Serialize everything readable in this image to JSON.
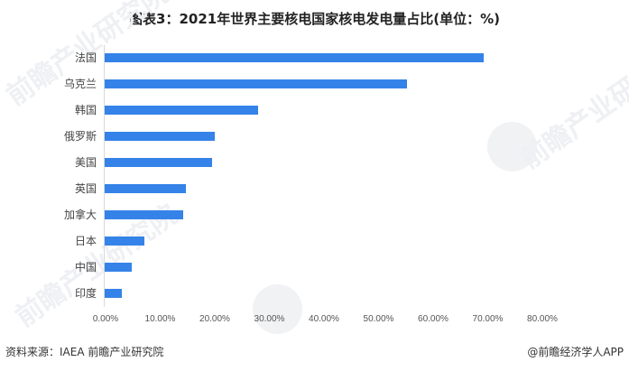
{
  "title": "图表3：2021年世界主要核电国家核电发电量占比(单位：%)",
  "chart_data": {
    "type": "bar",
    "orientation": "horizontal",
    "title": "图表3：2021年世界主要核电国家核电发电量占比(单位：%)",
    "xlabel": "",
    "ylabel": "",
    "categories": [
      "法国",
      "乌克兰",
      "韩国",
      "俄罗斯",
      "美国",
      "英国",
      "加拿大",
      "日本",
      "中国",
      "印度"
    ],
    "values": [
      69.4,
      55.4,
      28.1,
      20.2,
      19.7,
      14.9,
      14.4,
      7.3,
      5.0,
      3.1
    ],
    "xlim": [
      0,
      80
    ],
    "x_ticks": [
      "0.00%",
      "10.00%",
      "20.00%",
      "30.00%",
      "40.00%",
      "50.00%",
      "60.00%",
      "70.00%",
      "80.00%"
    ],
    "grid": false,
    "legend": null,
    "bar_color": "#3583E8"
  },
  "footer": {
    "source": "资料来源：IAEA 前瞻产业研究院",
    "credit": "@前瞻经济学人APP"
  },
  "watermark": {
    "text": "前瞻产业研究院"
  }
}
